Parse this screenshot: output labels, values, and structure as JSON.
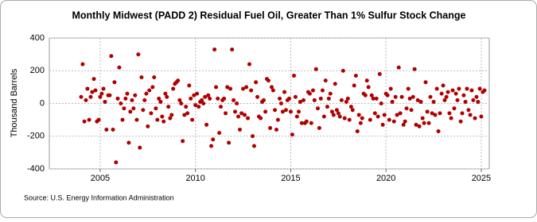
{
  "chart_data": {
    "type": "scatter",
    "title": "Monthly Midwest (PADD 2) Residual Fuel Oil, Greater Than 1% Sulfur Stock Change",
    "y_label": "Thousand Barrels",
    "source": "Source: U.S. Energy Information Administration",
    "color": "#b00000",
    "grid": true,
    "xlim": [
      2002.33,
      2025.42
    ],
    "xticks": [
      2005,
      2010,
      2015,
      2020,
      2025
    ],
    "ylim": [
      -400,
      400
    ],
    "yticks": [
      -400,
      -200,
      0,
      200,
      400
    ],
    "x": [
      2004.0,
      2004.08,
      2004.17,
      2004.25,
      2004.33,
      2004.42,
      2004.5,
      2004.58,
      2004.67,
      2004.75,
      2004.83,
      2004.92,
      2005.0,
      2005.08,
      2005.17,
      2005.25,
      2005.33,
      2005.42,
      2005.5,
      2005.58,
      2005.67,
      2005.75,
      2005.83,
      2005.92,
      2006.0,
      2006.08,
      2006.17,
      2006.25,
      2006.33,
      2006.42,
      2006.5,
      2006.58,
      2006.67,
      2006.75,
      2006.83,
      2006.92,
      2007.0,
      2007.08,
      2007.17,
      2007.25,
      2007.33,
      2007.42,
      2007.5,
      2007.58,
      2007.67,
      2007.75,
      2007.83,
      2007.92,
      2008.0,
      2008.08,
      2008.17,
      2008.25,
      2008.33,
      2008.42,
      2008.5,
      2008.58,
      2008.67,
      2008.75,
      2008.83,
      2008.92,
      2009.0,
      2009.08,
      2009.17,
      2009.25,
      2009.33,
      2009.42,
      2009.5,
      2009.58,
      2009.67,
      2009.75,
      2009.83,
      2009.92,
      2010.0,
      2010.08,
      2010.17,
      2010.25,
      2010.33,
      2010.42,
      2010.5,
      2010.58,
      2010.67,
      2010.75,
      2010.83,
      2010.92,
      2011.0,
      2011.08,
      2011.17,
      2011.25,
      2011.33,
      2011.42,
      2011.5,
      2011.58,
      2011.67,
      2011.75,
      2011.83,
      2011.92,
      2012.0,
      2012.08,
      2012.17,
      2012.25,
      2012.33,
      2012.42,
      2012.5,
      2012.58,
      2012.67,
      2012.75,
      2012.83,
      2012.92,
      2013.0,
      2013.08,
      2013.17,
      2013.25,
      2013.33,
      2013.42,
      2013.5,
      2013.58,
      2013.67,
      2013.75,
      2013.83,
      2013.92,
      2014.0,
      2014.08,
      2014.17,
      2014.25,
      2014.33,
      2014.42,
      2014.5,
      2014.58,
      2014.67,
      2014.75,
      2014.83,
      2014.92,
      2015.0,
      2015.08,
      2015.17,
      2015.25,
      2015.33,
      2015.42,
      2015.5,
      2015.58,
      2015.67,
      2015.75,
      2015.83,
      2015.92,
      2016.0,
      2016.08,
      2016.17,
      2016.25,
      2016.33,
      2016.42,
      2016.5,
      2016.58,
      2016.67,
      2016.75,
      2016.83,
      2016.92,
      2017.0,
      2017.08,
      2017.17,
      2017.25,
      2017.33,
      2017.42,
      2017.5,
      2017.58,
      2017.67,
      2017.75,
      2017.83,
      2017.92,
      2018.0,
      2018.08,
      2018.17,
      2018.25,
      2018.33,
      2018.42,
      2018.5,
      2018.58,
      2018.67,
      2018.75,
      2018.83,
      2018.92,
      2019.0,
      2019.08,
      2019.17,
      2019.25,
      2019.33,
      2019.42,
      2019.5,
      2019.58,
      2019.67,
      2019.75,
      2019.83,
      2019.92,
      2020.0,
      2020.08,
      2020.17,
      2020.25,
      2020.33,
      2020.42,
      2020.5,
      2020.58,
      2020.67,
      2020.75,
      2020.83,
      2020.92,
      2021.0,
      2021.08,
      2021.17,
      2021.25,
      2021.33,
      2021.42,
      2021.5,
      2021.58,
      2021.67,
      2021.75,
      2021.83,
      2021.92,
      2022.0,
      2022.08,
      2022.17,
      2022.25,
      2022.33,
      2022.42,
      2022.5,
      2022.58,
      2022.67,
      2022.75,
      2022.83,
      2022.92,
      2023.0,
      2023.08,
      2023.17,
      2023.25,
      2023.33,
      2023.42,
      2023.5,
      2023.58,
      2023.67,
      2023.75,
      2023.83,
      2023.92,
      2024.0,
      2024.08,
      2024.17,
      2024.25,
      2024.33,
      2024.42,
      2024.5,
      2024.58,
      2024.67,
      2024.75,
      2024.83,
      2024.92,
      2025.0,
      2025.08,
      2025.17
    ],
    "values": [
      40,
      240,
      -110,
      20,
      90,
      -100,
      40,
      70,
      150,
      80,
      -110,
      -100,
      40,
      60,
      90,
      10,
      -160,
      50,
      50,
      290,
      -160,
      130,
      -360,
      30,
      220,
      0,
      -100,
      -30,
      30,
      60,
      -240,
      -50,
      20,
      -30,
      50,
      -100,
      300,
      -270,
      160,
      -40,
      20,
      60,
      -140,
      80,
      -60,
      100,
      160,
      -30,
      -100,
      30,
      10,
      -80,
      -110,
      60,
      40,
      -20,
      -90,
      -70,
      90,
      120,
      130,
      140,
      20,
      0,
      -230,
      -70,
      -20,
      -60,
      110,
      30,
      -100,
      50,
      -10,
      60,
      -20,
      10,
      20,
      0,
      40,
      -130,
      50,
      30,
      -260,
      -220,
      330,
      100,
      30,
      -180,
      -20,
      20,
      30,
      -60,
      100,
      -240,
      90,
      330,
      20,
      -50,
      0,
      -80,
      -160,
      -60,
      90,
      -70,
      100,
      -90,
      240,
      80,
      -200,
      -260,
      130,
      40,
      -80,
      -90,
      10,
      20,
      -50,
      150,
      140,
      -150,
      100,
      80,
      -40,
      -160,
      -100,
      30,
      0,
      -50,
      70,
      -40,
      20,
      30,
      -50,
      -190,
      170,
      40,
      -80,
      -50,
      10,
      -120,
      20,
      -120,
      -110,
      70,
      60,
      -120,
      80,
      20,
      210,
      -30,
      -150,
      30,
      80,
      -80,
      140,
      -20,
      30,
      60,
      -50,
      -70,
      120,
      -40,
      -60,
      -80,
      20,
      200,
      -90,
      10,
      30,
      -100,
      -20,
      -40,
      110,
      170,
      -170,
      -70,
      -120,
      -90,
      60,
      50,
      140,
      100,
      -100,
      50,
      30,
      -60,
      30,
      -80,
      180,
      0,
      -130,
      -70,
      60,
      50,
      -100,
      90,
      10,
      -110,
      40,
      -70,
      220,
      -60,
      40,
      -130,
      -110,
      -30,
      90,
      30,
      -40,
      40,
      210,
      -130,
      20,
      -140,
      10,
      -90,
      -120,
      130,
      -50,
      -120,
      40,
      -60,
      10,
      -70,
      90,
      -170,
      -60,
      60,
      110,
      20,
      40,
      70,
      -60,
      -90,
      80,
      -30,
      60,
      20,
      90,
      -110,
      -60,
      50,
      10,
      90,
      -40,
      -70,
      80,
      20,
      -90,
      40,
      10,
      90,
      -80,
      70,
      80
    ]
  }
}
